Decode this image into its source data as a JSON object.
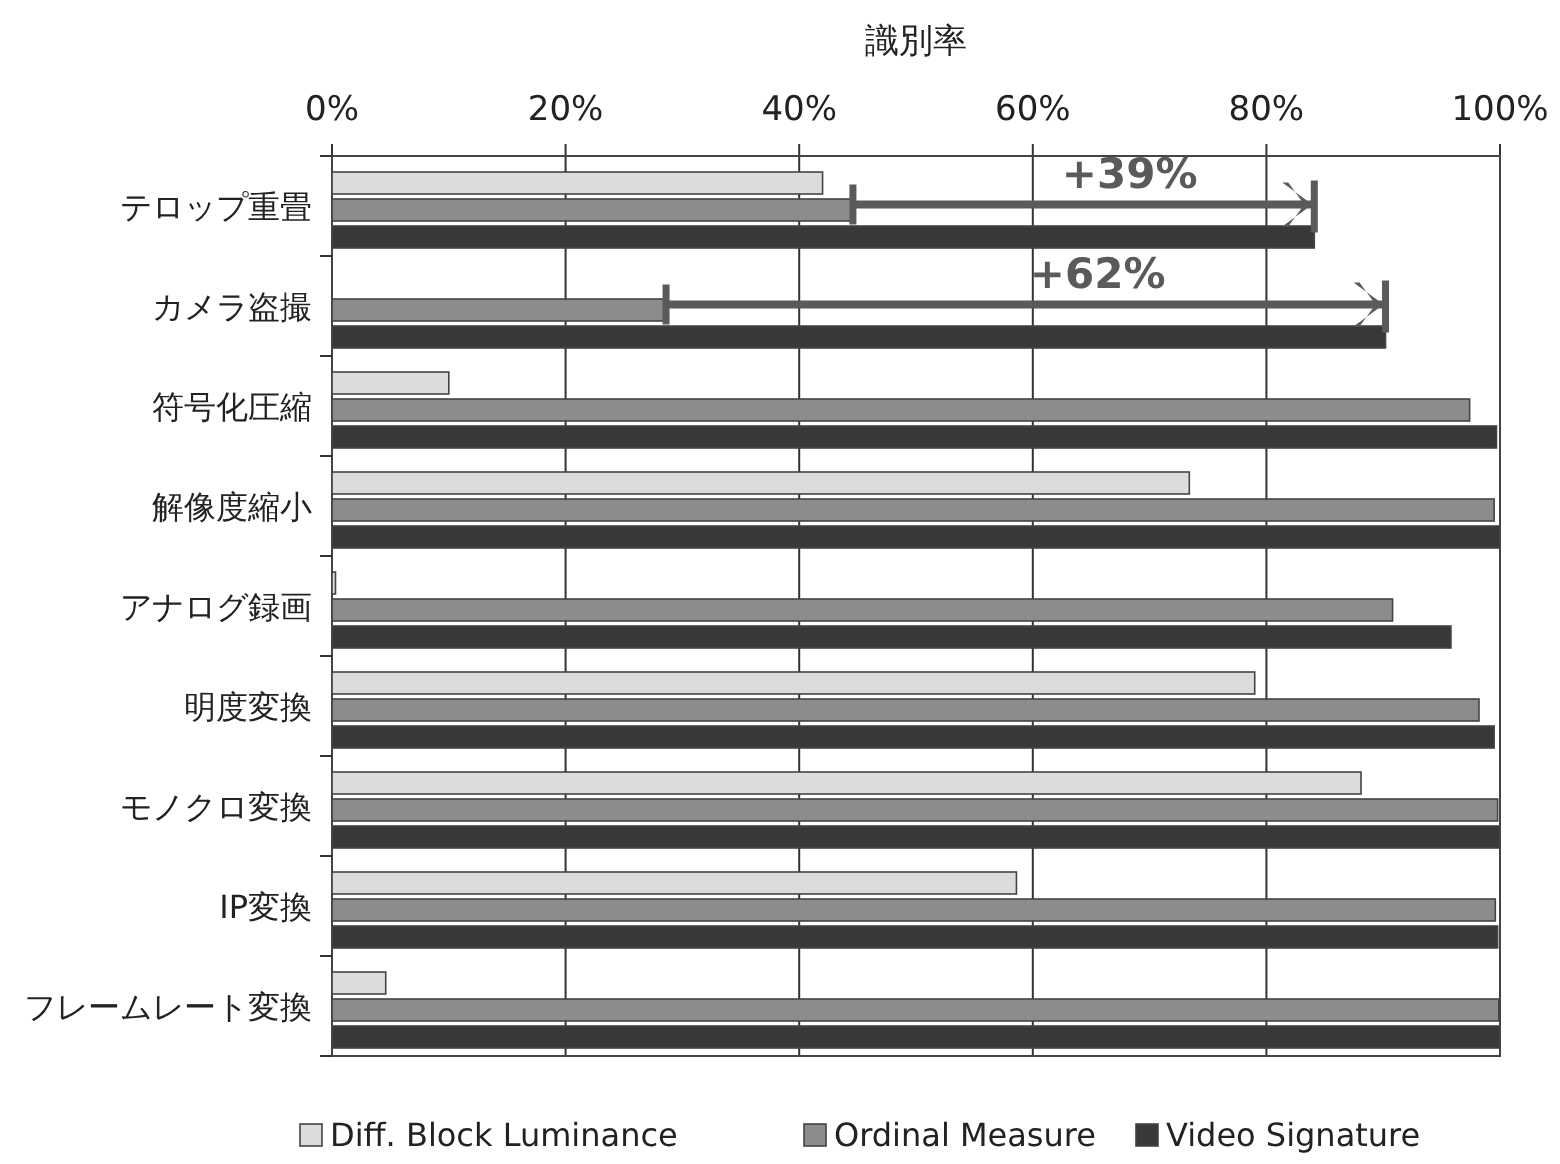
{
  "chart_data": {
    "type": "bar",
    "orientation": "horizontal",
    "xlabel": "識別率",
    "categories": [
      "テロップ重畳",
      "カメラ盗撮",
      "符号化圧縮",
      "解像度縮小",
      "アナログ録画",
      "明度変換",
      "モノクロ変換",
      "IP変換",
      "フレームレート変換"
    ],
    "series": [
      {
        "name": "Diff. Block Luminance",
        "color": "#dcdcdc",
        "values": [
          42,
          null,
          10,
          73.4,
          0.3,
          79,
          88.1,
          58.6,
          4.6
        ]
      },
      {
        "name": "Ordinal Measure",
        "color": "#8c8c8f",
        "values": [
          44.6,
          28.6,
          97.4,
          99.5,
          90.8,
          98.2,
          99.8,
          99.6,
          99.9
        ]
      },
      {
        "name": "Video Signature",
        "color": "#383838",
        "values": [
          84.1,
          90.2,
          99.7,
          100,
          95.8,
          99.5,
          100,
          99.8,
          100
        ]
      }
    ],
    "xlim": [
      0,
      100
    ],
    "xticks": [
      {
        "value": 0,
        "label": "0%"
      },
      {
        "value": 20,
        "label": "20%"
      },
      {
        "value": 40,
        "label": "40%"
      },
      {
        "value": 60,
        "label": "60%"
      },
      {
        "value": 80,
        "label": "80%"
      },
      {
        "value": 100,
        "label": "100%"
      }
    ],
    "grid": "x",
    "legend": "bottom",
    "annotations": [
      "+39%",
      "+62%"
    ]
  }
}
